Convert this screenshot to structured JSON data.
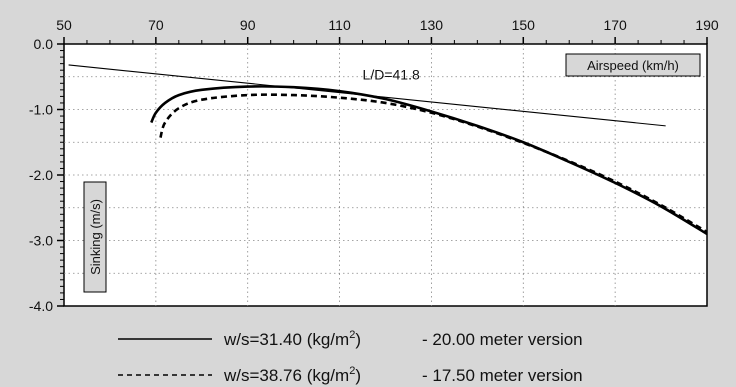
{
  "chart_data": {
    "type": "line",
    "xlabel": "Airspeed (km/h)",
    "ylabel": "Sinking (m/s)",
    "xlim": [
      50,
      190
    ],
    "ylim": [
      -4.0,
      0.0
    ],
    "x_ticks": [
      "50",
      "70",
      "90",
      "110",
      "130",
      "150",
      "170",
      "190"
    ],
    "y_ticks": [
      "0.0",
      "-1.0",
      "-2.0",
      "-3.0",
      "-4.0"
    ],
    "grid": true,
    "x_axis_position": "top",
    "series": [
      {
        "legend_prefix": "w/s=31.40 (kg/m",
        "legend_unit_exp": "2",
        "legend_suffix": ")",
        "legend_version": "- 20.00 meter version",
        "style": "solid",
        "x": [
          69,
          70,
          72,
          75,
          80,
          90,
          100,
          110,
          120,
          130,
          140,
          150,
          160,
          170,
          180,
          190
        ],
        "y": [
          -1.2,
          -1.05,
          -0.9,
          -0.78,
          -0.7,
          -0.65,
          -0.66,
          -0.72,
          -0.84,
          -1.03,
          -1.25,
          -1.5,
          -1.8,
          -2.12,
          -2.48,
          -2.9
        ]
      },
      {
        "legend_prefix": "w/s=38.76 (kg/m",
        "legend_unit_exp": "2",
        "legend_suffix": ")",
        "legend_version": "- 17.50 meter version",
        "style": "dashed",
        "x": [
          71,
          72,
          75,
          80,
          90,
          100,
          110,
          120,
          130,
          140,
          150,
          160,
          170,
          180,
          190
        ],
        "y": [
          -1.43,
          -1.2,
          -0.98,
          -0.85,
          -0.78,
          -0.78,
          -0.82,
          -0.9,
          -1.05,
          -1.26,
          -1.51,
          -1.79,
          -2.1,
          -2.46,
          -2.87
        ]
      }
    ],
    "tangent_line": {
      "x": [
        51,
        181
      ],
      "y": [
        -0.32,
        -1.25
      ],
      "label": "L/D=41.8"
    }
  }
}
